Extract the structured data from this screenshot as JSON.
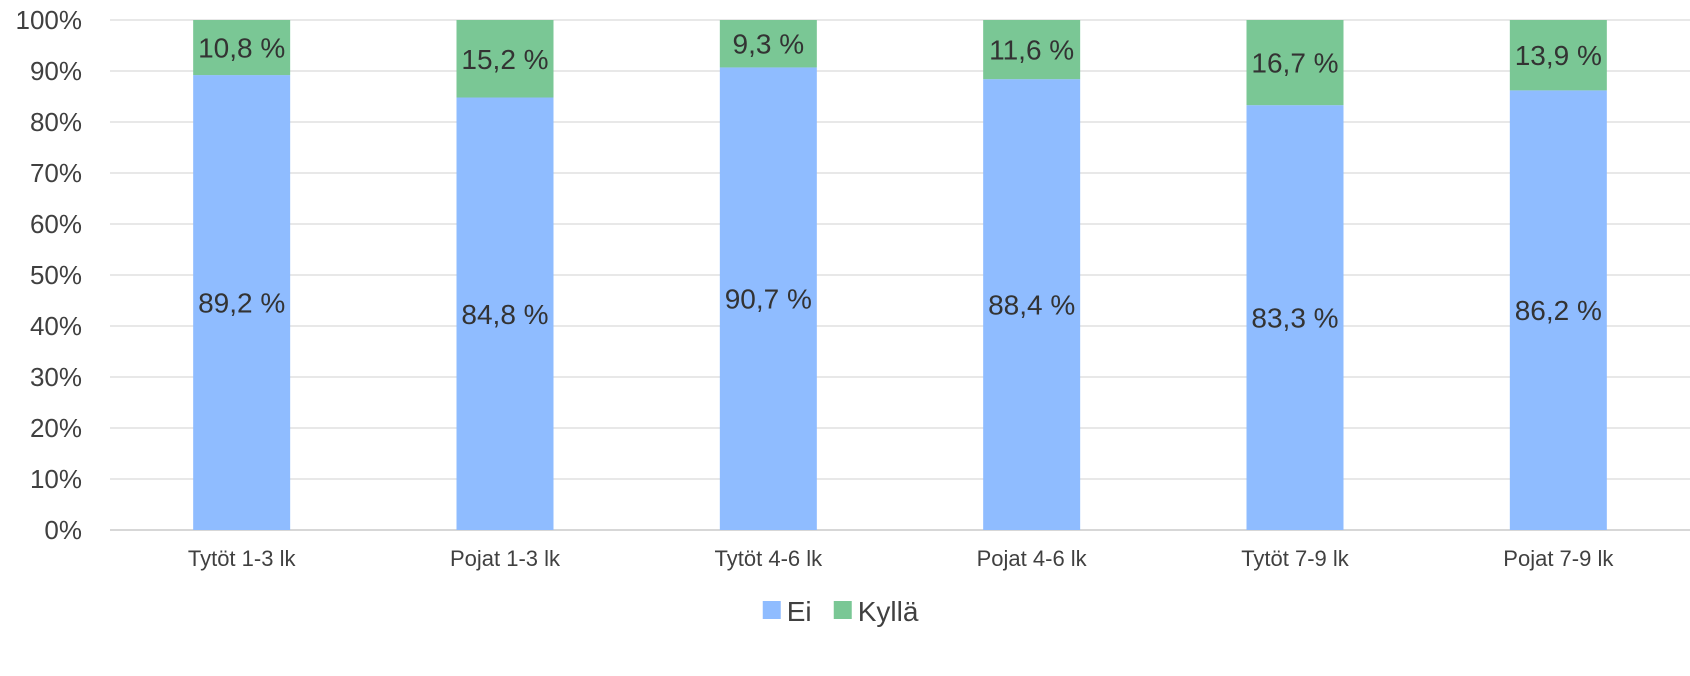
{
  "chart_data": {
    "type": "bar",
    "stacked": true,
    "percent_stacked": true,
    "categories": [
      "Tytöt 1-3 lk",
      "Pojat 1-3 lk",
      "Tytöt 4-6 lk",
      "Pojat 4-6 lk",
      "Tytöt 7-9 lk",
      "Pojat 7-9 lk"
    ],
    "series": [
      {
        "name": "Ei",
        "color": "#8fbcff",
        "values": [
          89.2,
          84.8,
          90.7,
          88.4,
          83.3,
          86.2
        ],
        "labels": [
          "89,2 %",
          "84,8 %",
          "90,7 %",
          "88,4 %",
          "83,3 %",
          "86,2 %"
        ]
      },
      {
        "name": "Kyllä",
        "color": "#7ac795",
        "values": [
          10.8,
          15.2,
          9.3,
          11.6,
          16.7,
          13.9
        ],
        "labels": [
          "10,8 %",
          "15,2 %",
          "9,3 %",
          "11,6 %",
          "16,7 %",
          "13,9 %"
        ]
      }
    ],
    "ylim": [
      0,
      100
    ],
    "y_ticks": [
      "0%",
      "10%",
      "20%",
      "30%",
      "40%",
      "50%",
      "60%",
      "70%",
      "80%",
      "90%",
      "100%"
    ],
    "grid": true,
    "legend_position": "bottom",
    "title": "",
    "xlabel": "",
    "ylabel": ""
  }
}
